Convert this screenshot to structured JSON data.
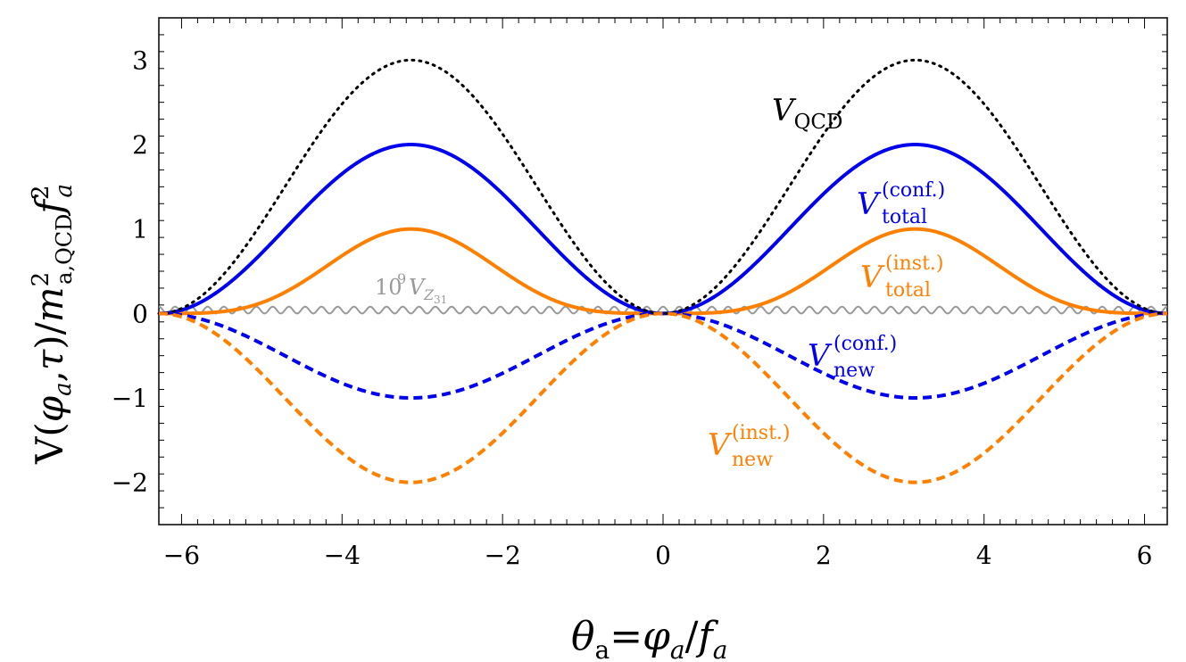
{
  "chart_data": {
    "type": "line",
    "title": "",
    "xlabel": "θa=φa/fa",
    "ylabel": "V(φa,τ)/m²a,QCD f²a",
    "xlim": [
      -6.283,
      6.283
    ],
    "ylim": [
      -2.5,
      3.5
    ],
    "xticks": [
      -6,
      -4,
      -2,
      0,
      2,
      4,
      6
    ],
    "xtick_labels": [
      "−6",
      "−4",
      "−2",
      "0",
      "2",
      "4",
      "6"
    ],
    "yticks": [
      -2,
      -1,
      0,
      1,
      2,
      3
    ],
    "ytick_labels": [
      "−2",
      "−1",
      "0",
      "1",
      "2",
      "3"
    ],
    "grid": false,
    "series": [
      {
        "name": "V_QCD",
        "color": "#000000",
        "style": "dotted",
        "formula": "1.5*(1 - cos(x))",
        "peak": 3.0
      },
      {
        "name": "V_total^(conf.)",
        "color": "#0000ee",
        "style": "solid",
        "formula": "1 - cos(x)",
        "peak": 2.0
      },
      {
        "name": "V_total^(inst.)",
        "color": "#ff8000",
        "style": "solid",
        "formula": "(1 - cos(x))^2 / 4",
        "peak": 1.0
      },
      {
        "name": "10^9 V_Z31",
        "color": "#999999",
        "style": "solid",
        "formula": "0.04 + 0.04*cos(31*x)",
        "peak": 0.08
      },
      {
        "name": "V_new^(conf.)",
        "color": "#0000ee",
        "style": "dashed",
        "formula": "-(1 - cos(x))/2",
        "min": -1.0
      },
      {
        "name": "V_new^(inst.)",
        "color": "#ff8000",
        "style": "dashed",
        "formula": "-(1 - cos(x))",
        "min": -2.0
      }
    ]
  },
  "annotations": {
    "vqcd": {
      "base": "V",
      "sub": "QCD"
    },
    "vtotal_conf": {
      "base": "V",
      "sup": "(conf.)",
      "sub": "total"
    },
    "vtotal_inst": {
      "base": "V",
      "sup": "(inst.)",
      "sub": "total"
    },
    "vz31": {
      "prefix": "10",
      "exp": "9",
      "base": "V",
      "sub": "Z",
      "subsub": "31"
    },
    "vnew_conf": {
      "base": "V",
      "sup": "(conf.)",
      "sub": "new"
    },
    "vnew_inst": {
      "base": "V",
      "sup": "(inst.)",
      "sub": "new"
    }
  },
  "axis_titles": {
    "x": {
      "theta": "θ",
      "a1": "a",
      "eq": "=",
      "phi": "φ",
      "a2": "a",
      "slash": "/",
      "f": "f",
      "a3": "a"
    },
    "y": {
      "open": "V(",
      "phi": "φ",
      "a1": "a",
      "comma": ",",
      "tau": "τ",
      "close": ")/",
      "m": "m",
      "msup": "2",
      "msub": "a,QCD",
      "f": "f",
      "fsup": "2",
      "fsub": "a"
    }
  },
  "colors": {
    "blue": "#0000ee",
    "orange": "#ff8000",
    "gray": "#999999",
    "black": "#000000"
  }
}
